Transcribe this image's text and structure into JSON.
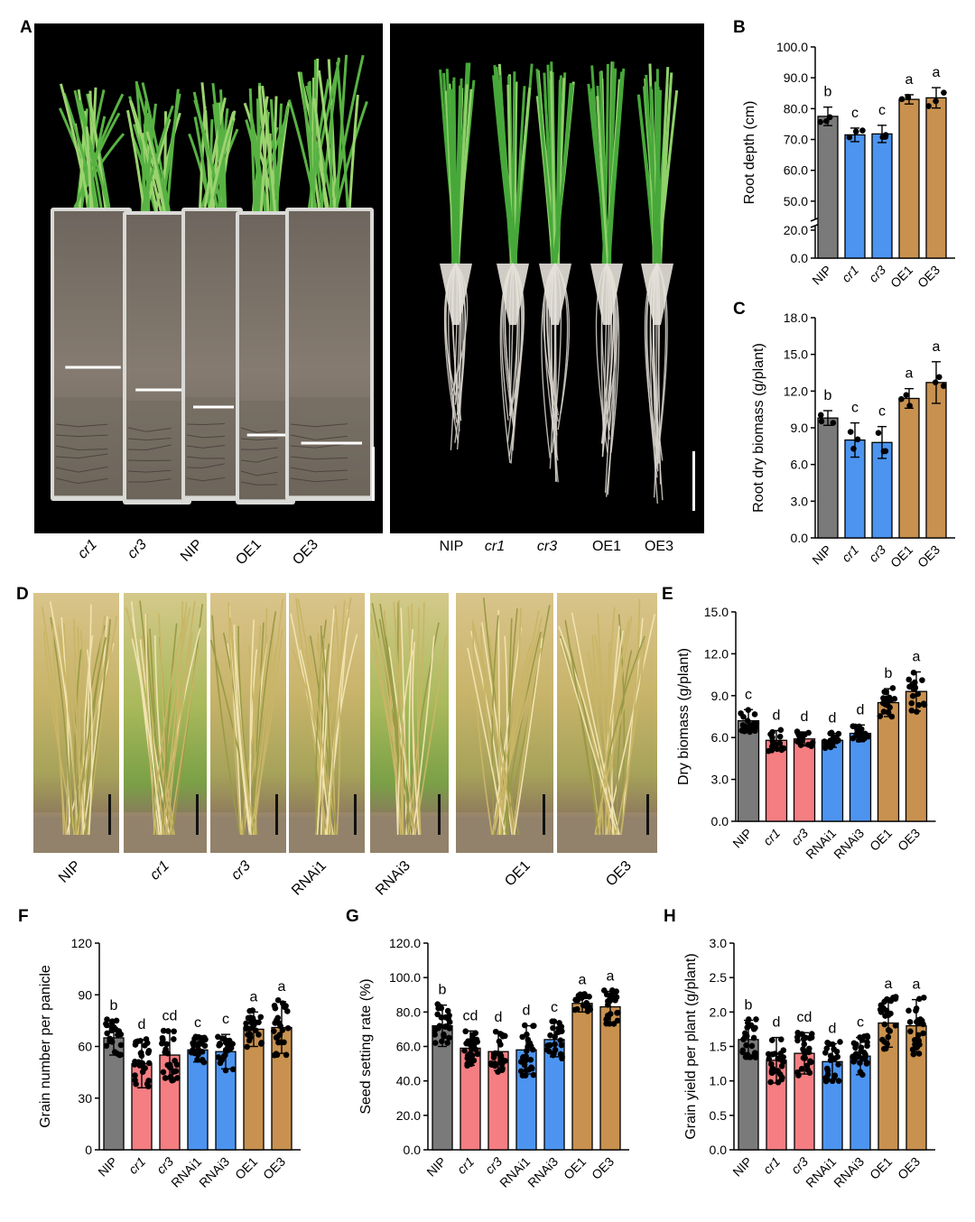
{
  "colors": {
    "gray": "#7a7a7a",
    "blue": "#4c94f0",
    "pink": "#f47e82",
    "gold": "#c8914f"
  },
  "panel_A": {
    "letter": "A",
    "soil_labels": [
      {
        "text": "cr1",
        "italic": true
      },
      {
        "text": "cr3",
        "italic": true
      },
      {
        "text": "NIP",
        "italic": false
      },
      {
        "text": "OE1",
        "italic": false
      },
      {
        "text": "OE3",
        "italic": false
      }
    ],
    "root_labels": [
      {
        "text": "NIP",
        "italic": false
      },
      {
        "text": "cr1",
        "italic": true
      },
      {
        "text": "cr3",
        "italic": true
      },
      {
        "text": "OE1",
        "italic": false
      },
      {
        "text": "OE3",
        "italic": false
      }
    ]
  },
  "panel_D": {
    "letter": "D",
    "labels": [
      {
        "text": "NIP",
        "italic": false
      },
      {
        "text": "cr1",
        "italic": true
      },
      {
        "text": "cr3",
        "italic": true
      },
      {
        "text": "RNAi1",
        "italic": false
      },
      {
        "text": "RNAi3",
        "italic": false
      },
      {
        "text": "OE1",
        "italic": false
      },
      {
        "text": "OE3",
        "italic": false
      }
    ]
  },
  "chart_data": [
    {
      "panel": "B",
      "type": "bar",
      "ylabel": "Root depth (cm)",
      "categories": [
        "NIP",
        "cr1",
        "cr3",
        "OE1",
        "OE3"
      ],
      "italic": [
        false,
        true,
        true,
        false,
        false
      ],
      "values": [
        77.5,
        71.5,
        71.8,
        83.0,
        83.5
      ],
      "errors": [
        3.0,
        2.2,
        2.8,
        1.5,
        3.3
      ],
      "letters": [
        "b",
        "c",
        "c",
        "a",
        "a"
      ],
      "colors": [
        "gray",
        "blue",
        "blue",
        "gold",
        "gold"
      ],
      "ticks": [
        "0.0",
        "20.0",
        "50.0",
        "60.0",
        "70.0",
        "80.0",
        "90.0",
        "100.0"
      ],
      "axis_break": [
        20,
        45
      ],
      "ylim": [
        0,
        100
      ]
    },
    {
      "panel": "C",
      "type": "bar",
      "ylabel": "Root dry biomass  (g/plant)",
      "categories": [
        "NIP",
        "cr1",
        "cr3",
        "OE1",
        "OE3"
      ],
      "italic": [
        false,
        true,
        true,
        false,
        false
      ],
      "values": [
        9.8,
        8.0,
        7.8,
        11.4,
        12.7
      ],
      "errors": [
        0.6,
        1.4,
        1.3,
        0.8,
        1.7
      ],
      "letters": [
        "b",
        "c",
        "c",
        "a",
        "a"
      ],
      "colors": [
        "gray",
        "blue",
        "blue",
        "gold",
        "gold"
      ],
      "ticks": [
        "0.0",
        "3.0",
        "6.0",
        "9.0",
        "12.0",
        "15.0",
        "18.0"
      ],
      "ylim": [
        0,
        18
      ]
    },
    {
      "panel": "E",
      "type": "bar",
      "ylabel": "Dry biomass (g/plant)",
      "categories": [
        "NIP",
        "cr1",
        "cr3",
        "RNAi1",
        "RNAi3",
        "OE1",
        "OE3"
      ],
      "italic": [
        false,
        true,
        true,
        false,
        false,
        false,
        false
      ],
      "values": [
        7.2,
        5.8,
        5.9,
        5.8,
        6.3,
        8.5,
        9.3
      ],
      "errors": [
        0.8,
        0.7,
        0.5,
        0.5,
        0.6,
        1.0,
        1.4
      ],
      "letters": [
        "c",
        "d",
        "d",
        "d",
        "d",
        "b",
        "a"
      ],
      "colors": [
        "gray",
        "pink",
        "pink",
        "blue",
        "blue",
        "gold",
        "gold"
      ],
      "ticks": [
        "0.0",
        "3.0",
        "6.0",
        "9.0",
        "12.0",
        "15.0"
      ],
      "ylim": [
        0,
        15
      ]
    },
    {
      "panel": "F",
      "type": "bar",
      "ylabel": "Grain number per panicle",
      "categories": [
        "NIP",
        "cr1",
        "cr3",
        "RNAi1",
        "RNAi3",
        "OE1",
        "OE3"
      ],
      "italic": [
        false,
        true,
        true,
        false,
        false,
        false,
        false
      ],
      "values": [
        65,
        50,
        55,
        58,
        57,
        70,
        71
      ],
      "errors": [
        10,
        14,
        14,
        7,
        10,
        10,
        15
      ],
      "letters": [
        "b",
        "d",
        "cd",
        "c",
        "c",
        "a",
        "a"
      ],
      "colors": [
        "gray",
        "pink",
        "pink",
        "blue",
        "blue",
        "gold",
        "gold"
      ],
      "ticks": [
        "0",
        "30",
        "60",
        "90",
        "120"
      ],
      "ylim": [
        0,
        120
      ]
    },
    {
      "panel": "G",
      "type": "bar",
      "ylabel": "Seed setting rate (%)",
      "categories": [
        "NIP",
        "cr1",
        "cr3",
        "RNAi1",
        "RNAi3",
        "OE1",
        "OE3"
      ],
      "italic": [
        false,
        true,
        true,
        false,
        false,
        false,
        false
      ],
      "values": [
        72,
        59,
        57,
        58,
        64,
        85,
        83
      ],
      "errors": [
        12,
        10,
        11,
        14,
        10,
        5,
        9
      ],
      "letters": [
        "b",
        "cd",
        "d",
        "d",
        "c",
        "a",
        "a"
      ],
      "colors": [
        "gray",
        "pink",
        "pink",
        "blue",
        "blue",
        "gold",
        "gold"
      ],
      "ticks": [
        "0.0",
        "20.0",
        "40.0",
        "60.0",
        "80.0",
        "100.0",
        "120.0"
      ],
      "ylim": [
        0,
        120
      ]
    },
    {
      "panel": "H",
      "type": "bar",
      "ylabel": "Grain yield per plant (g/plant)",
      "categories": [
        "NIP",
        "cr1",
        "cr3",
        "RNAi1",
        "RNAi3",
        "OE1",
        "OE3"
      ],
      "italic": [
        false,
        true,
        true,
        false,
        false,
        false,
        false
      ],
      "values": [
        1.6,
        1.3,
        1.4,
        1.28,
        1.36,
        1.84,
        1.8
      ],
      "errors": [
        0.28,
        0.33,
        0.3,
        0.26,
        0.27,
        0.35,
        0.38
      ],
      "letters": [
        "b",
        "d",
        "cd",
        "d",
        "c",
        "a",
        "a"
      ],
      "colors": [
        "gray",
        "pink",
        "pink",
        "blue",
        "blue",
        "gold",
        "gold"
      ],
      "ticks": [
        "0.0",
        "0.5",
        "1.0",
        "1.5",
        "2.0",
        "2.5",
        "3.0"
      ],
      "ylim": [
        0,
        3
      ]
    }
  ]
}
